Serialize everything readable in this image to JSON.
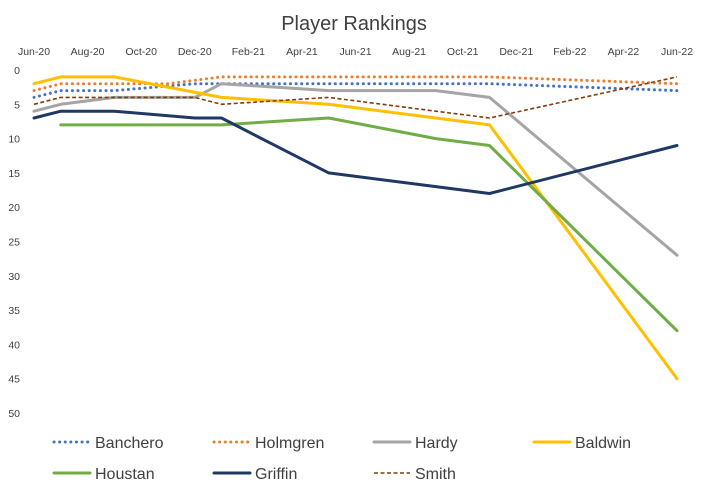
{
  "chart_data": {
    "type": "line",
    "title": "Player Rankings",
    "xlabel": "",
    "ylabel": "",
    "x_tick_labels": [
      "Jun-20",
      "Aug-20",
      "Oct-20",
      "Dec-20",
      "Feb-21",
      "Apr-21",
      "Jun-21",
      "Aug-21",
      "Oct-21",
      "Dec-21",
      "Feb-22",
      "Apr-22",
      "Jun-22"
    ],
    "y_tick_labels": [
      "0",
      "5",
      "10",
      "15",
      "20",
      "25",
      "30",
      "35",
      "40",
      "45",
      "50"
    ],
    "ylim": [
      0,
      50
    ],
    "y_reversed": true,
    "grid": false,
    "legend_position": "bottom",
    "series": [
      {
        "name": "Banchero",
        "color": "#4472C4",
        "dash": "dotted",
        "points": [
          [
            "Jun-20",
            4
          ],
          [
            "Jul-20",
            3
          ],
          [
            "Sep-20",
            3
          ],
          [
            "Dec-20",
            2
          ],
          [
            "Mar-21",
            2
          ],
          [
            "Jun-21",
            2
          ],
          [
            "Sep-21",
            2
          ],
          [
            "Nov-21",
            2
          ],
          [
            "Jun-22",
            3
          ]
        ]
      },
      {
        "name": "Holmgren",
        "color": "#ED7D31",
        "dash": "dotted",
        "points": [
          [
            "Jun-20",
            3
          ],
          [
            "Jul-20",
            2
          ],
          [
            "Sep-20",
            2
          ],
          [
            "Nov-20",
            2
          ],
          [
            "Jan-21",
            1
          ],
          [
            "Apr-21",
            1
          ],
          [
            "Aug-21",
            1
          ],
          [
            "Nov-21",
            1
          ],
          [
            "Jun-22",
            2
          ]
        ]
      },
      {
        "name": "Hardy",
        "color": "#A5A5A5",
        "dash": "solid",
        "points": [
          [
            "Jun-20",
            6
          ],
          [
            "Jul-20",
            5
          ],
          [
            "Sep-20",
            4
          ],
          [
            "Dec-20",
            4
          ],
          [
            "Jan-21",
            2
          ],
          [
            "May-21",
            3
          ],
          [
            "Sep-21",
            3
          ],
          [
            "Nov-21",
            4
          ],
          [
            "Jun-22",
            27
          ]
        ]
      },
      {
        "name": "Baldwin",
        "color": "#FFC000",
        "dash": "solid",
        "points": [
          [
            "Jun-20",
            2
          ],
          [
            "Jul-20",
            1
          ],
          [
            "Sep-20",
            1
          ],
          [
            "Jan-21",
            4
          ],
          [
            "May-21",
            5
          ],
          [
            "Sep-21",
            7
          ],
          [
            "Nov-21",
            8
          ],
          [
            "Jun-22",
            45
          ]
        ]
      },
      {
        "name": "Houstan",
        "color": "#70AD47",
        "dash": "solid",
        "points": [
          [
            "Jul-20",
            8
          ],
          [
            "Jan-21",
            8
          ],
          [
            "May-21",
            7
          ],
          [
            "Sep-21",
            10
          ],
          [
            "Nov-21",
            11
          ],
          [
            "Jun-22",
            38
          ]
        ]
      },
      {
        "name": "Griffin",
        "color": "#203864",
        "dash": "solid",
        "points": [
          [
            "Jun-20",
            7
          ],
          [
            "Jul-20",
            6
          ],
          [
            "Sep-20",
            6
          ],
          [
            "Dec-20",
            7
          ],
          [
            "Jan-21",
            7
          ],
          [
            "May-21",
            15
          ],
          [
            "Sep-21",
            17
          ],
          [
            "Nov-21",
            18
          ],
          [
            "Jun-22",
            11
          ]
        ]
      },
      {
        "name": "Smith",
        "color": "#843C0C",
        "dash": "dashed",
        "points": [
          [
            "Jun-20",
            5
          ],
          [
            "Jul-20",
            4
          ],
          [
            "Sep-20",
            4
          ],
          [
            "Dec-20",
            4
          ],
          [
            "Jan-21",
            5
          ],
          [
            "May-21",
            4
          ],
          [
            "Sep-21",
            6
          ],
          [
            "Nov-21",
            7
          ],
          [
            "Jun-22",
            1
          ]
        ]
      }
    ]
  }
}
